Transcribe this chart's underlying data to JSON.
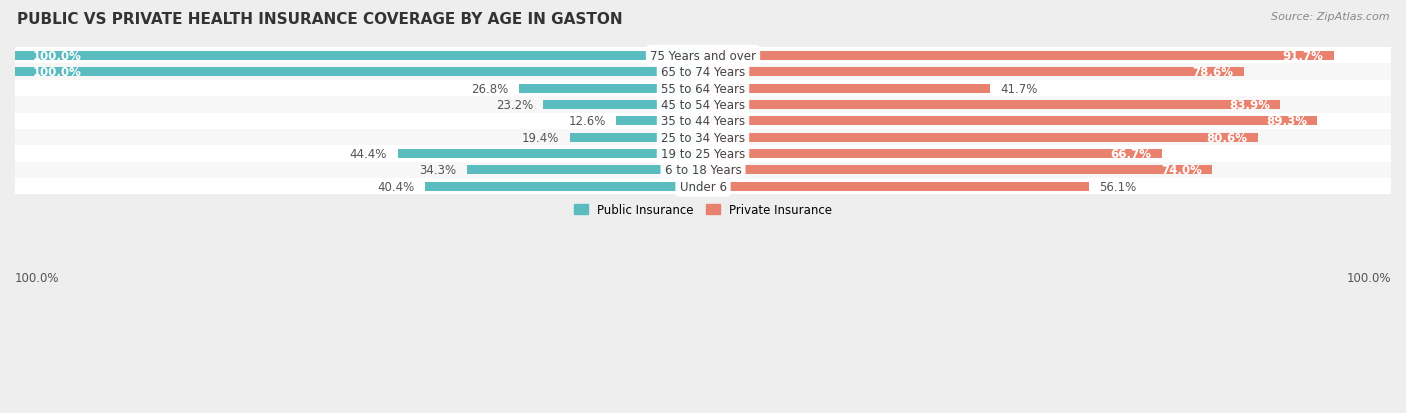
{
  "title": "PUBLIC VS PRIVATE HEALTH INSURANCE COVERAGE BY AGE IN GASTON",
  "source": "Source: ZipAtlas.com",
  "categories": [
    "Under 6",
    "6 to 18 Years",
    "19 to 25 Years",
    "25 to 34 Years",
    "35 to 44 Years",
    "45 to 54 Years",
    "55 to 64 Years",
    "65 to 74 Years",
    "75 Years and over"
  ],
  "public_values": [
    40.4,
    34.3,
    44.4,
    19.4,
    12.6,
    23.2,
    26.8,
    100.0,
    100.0
  ],
  "private_values": [
    56.1,
    74.0,
    66.7,
    80.6,
    89.3,
    83.9,
    41.7,
    78.6,
    91.7
  ],
  "public_color": "#5bbcbf",
  "private_color": "#e8826e",
  "bg_color": "#eeeeee",
  "row_bg_even": "#f7f7f7",
  "row_bg_odd": "#ffffff",
  "bar_height": 0.55,
  "title_fontsize": 11,
  "label_fontsize": 8.5,
  "value_fontsize": 8.5,
  "source_fontsize": 8,
  "legend_fontsize": 8.5,
  "axis_label": "100.0%",
  "max_val": 100.0
}
